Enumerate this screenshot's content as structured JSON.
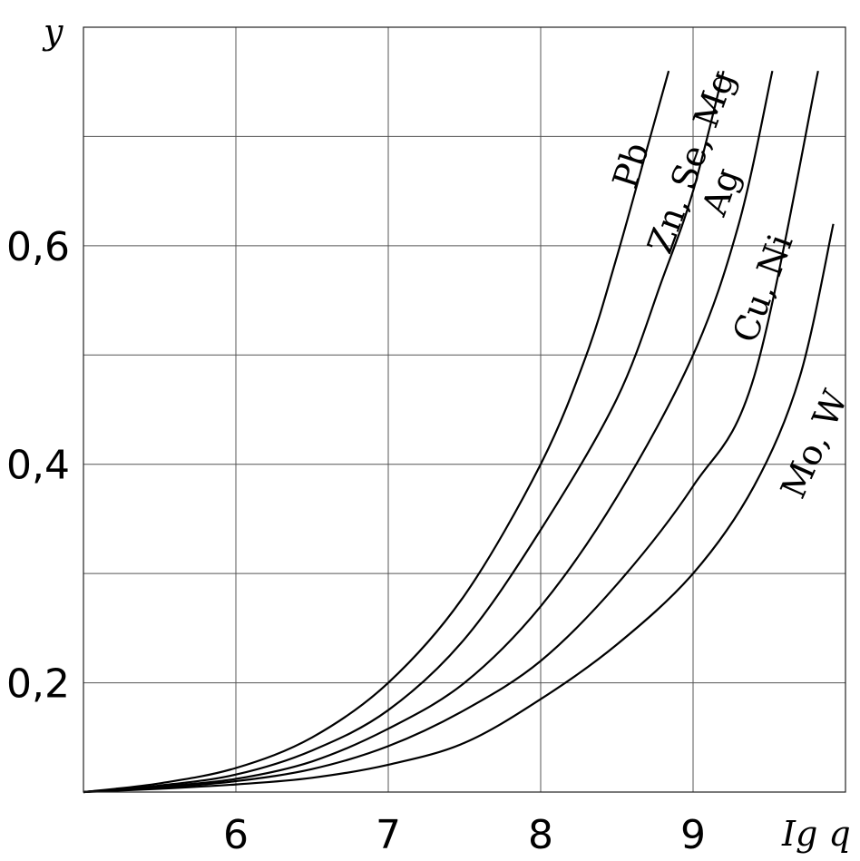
{
  "chart_data": {
    "type": "line",
    "title": "",
    "xlabel": "Ig q",
    "ylabel": "y",
    "xlim": [
      5.0,
      10.0
    ],
    "ylim": [
      0.1,
      0.8
    ],
    "xticks": [
      6,
      7,
      8,
      9
    ],
    "xtick_labels": [
      "6",
      "7",
      "8",
      "9"
    ],
    "yticks": [
      0.2,
      0.4,
      0.6
    ],
    "ytick_labels": [
      "0,2",
      "0,4",
      "0,6"
    ],
    "grid": true,
    "series": [
      {
        "name": "Pb",
        "x": [
          5.0,
          5.5,
          6.0,
          6.5,
          7.0,
          7.5,
          8.0,
          8.3,
          8.5,
          8.7,
          8.84
        ],
        "y": [
          0.1,
          0.108,
          0.122,
          0.15,
          0.2,
          0.28,
          0.4,
          0.5,
          0.59,
          0.69,
          0.76
        ]
      },
      {
        "name": "Zn, Se, Mg",
        "x": [
          5.0,
          5.5,
          6.0,
          6.5,
          7.0,
          7.5,
          8.0,
          8.5,
          8.8,
          9.0,
          9.2
        ],
        "y": [
          0.1,
          0.106,
          0.116,
          0.138,
          0.175,
          0.24,
          0.34,
          0.46,
          0.57,
          0.65,
          0.76
        ]
      },
      {
        "name": "Ag",
        "x": [
          5.0,
          5.5,
          6.0,
          6.5,
          7.0,
          7.5,
          8.0,
          8.5,
          9.0,
          9.3,
          9.52
        ],
        "y": [
          0.1,
          0.105,
          0.112,
          0.128,
          0.158,
          0.2,
          0.27,
          0.37,
          0.5,
          0.62,
          0.76
        ]
      },
      {
        "name": "Cu, Ni",
        "x": [
          5.0,
          5.5,
          6.0,
          6.5,
          7.0,
          7.5,
          8.0,
          8.5,
          9.0,
          9.4,
          9.82
        ],
        "y": [
          0.1,
          0.104,
          0.11,
          0.121,
          0.142,
          0.175,
          0.22,
          0.29,
          0.38,
          0.48,
          0.76
        ]
      },
      {
        "name": "Mo, W",
        "x": [
          5.0,
          5.5,
          6.0,
          6.5,
          7.0,
          7.5,
          8.0,
          8.5,
          9.0,
          9.4,
          9.7,
          9.92
        ],
        "y": [
          0.1,
          0.103,
          0.107,
          0.113,
          0.125,
          0.145,
          0.185,
          0.235,
          0.3,
          0.38,
          0.48,
          0.62
        ]
      }
    ]
  }
}
